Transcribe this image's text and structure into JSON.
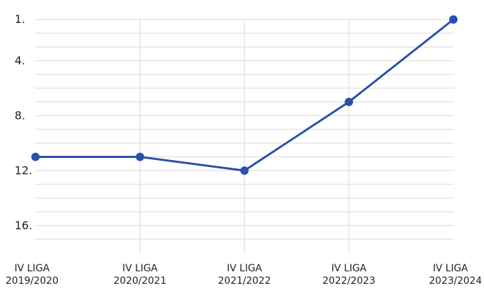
{
  "chart_data": {
    "type": "line",
    "y_inverted": true,
    "ylim": [
      1,
      17
    ],
    "ytick_values": [
      1,
      4,
      8,
      12,
      16
    ],
    "ytick_labels": [
      "1.",
      "4.",
      "8.",
      "12.",
      "16."
    ],
    "categories": [
      [
        "IV LIGA",
        "2019/2020"
      ],
      [
        "IV LIGA",
        "2020/2021"
      ],
      [
        "IV LIGA",
        "2021/2022"
      ],
      [
        "IV LIGA",
        "2022/2023"
      ],
      [
        "IV LIGA",
        "2023/2024"
      ]
    ],
    "series": [
      {
        "values": [
          11,
          11,
          12,
          7,
          1
        ]
      }
    ],
    "grid": true,
    "colors": {
      "line": "#2850a8",
      "grid": "#d9d9d9",
      "text": "#222222"
    }
  }
}
